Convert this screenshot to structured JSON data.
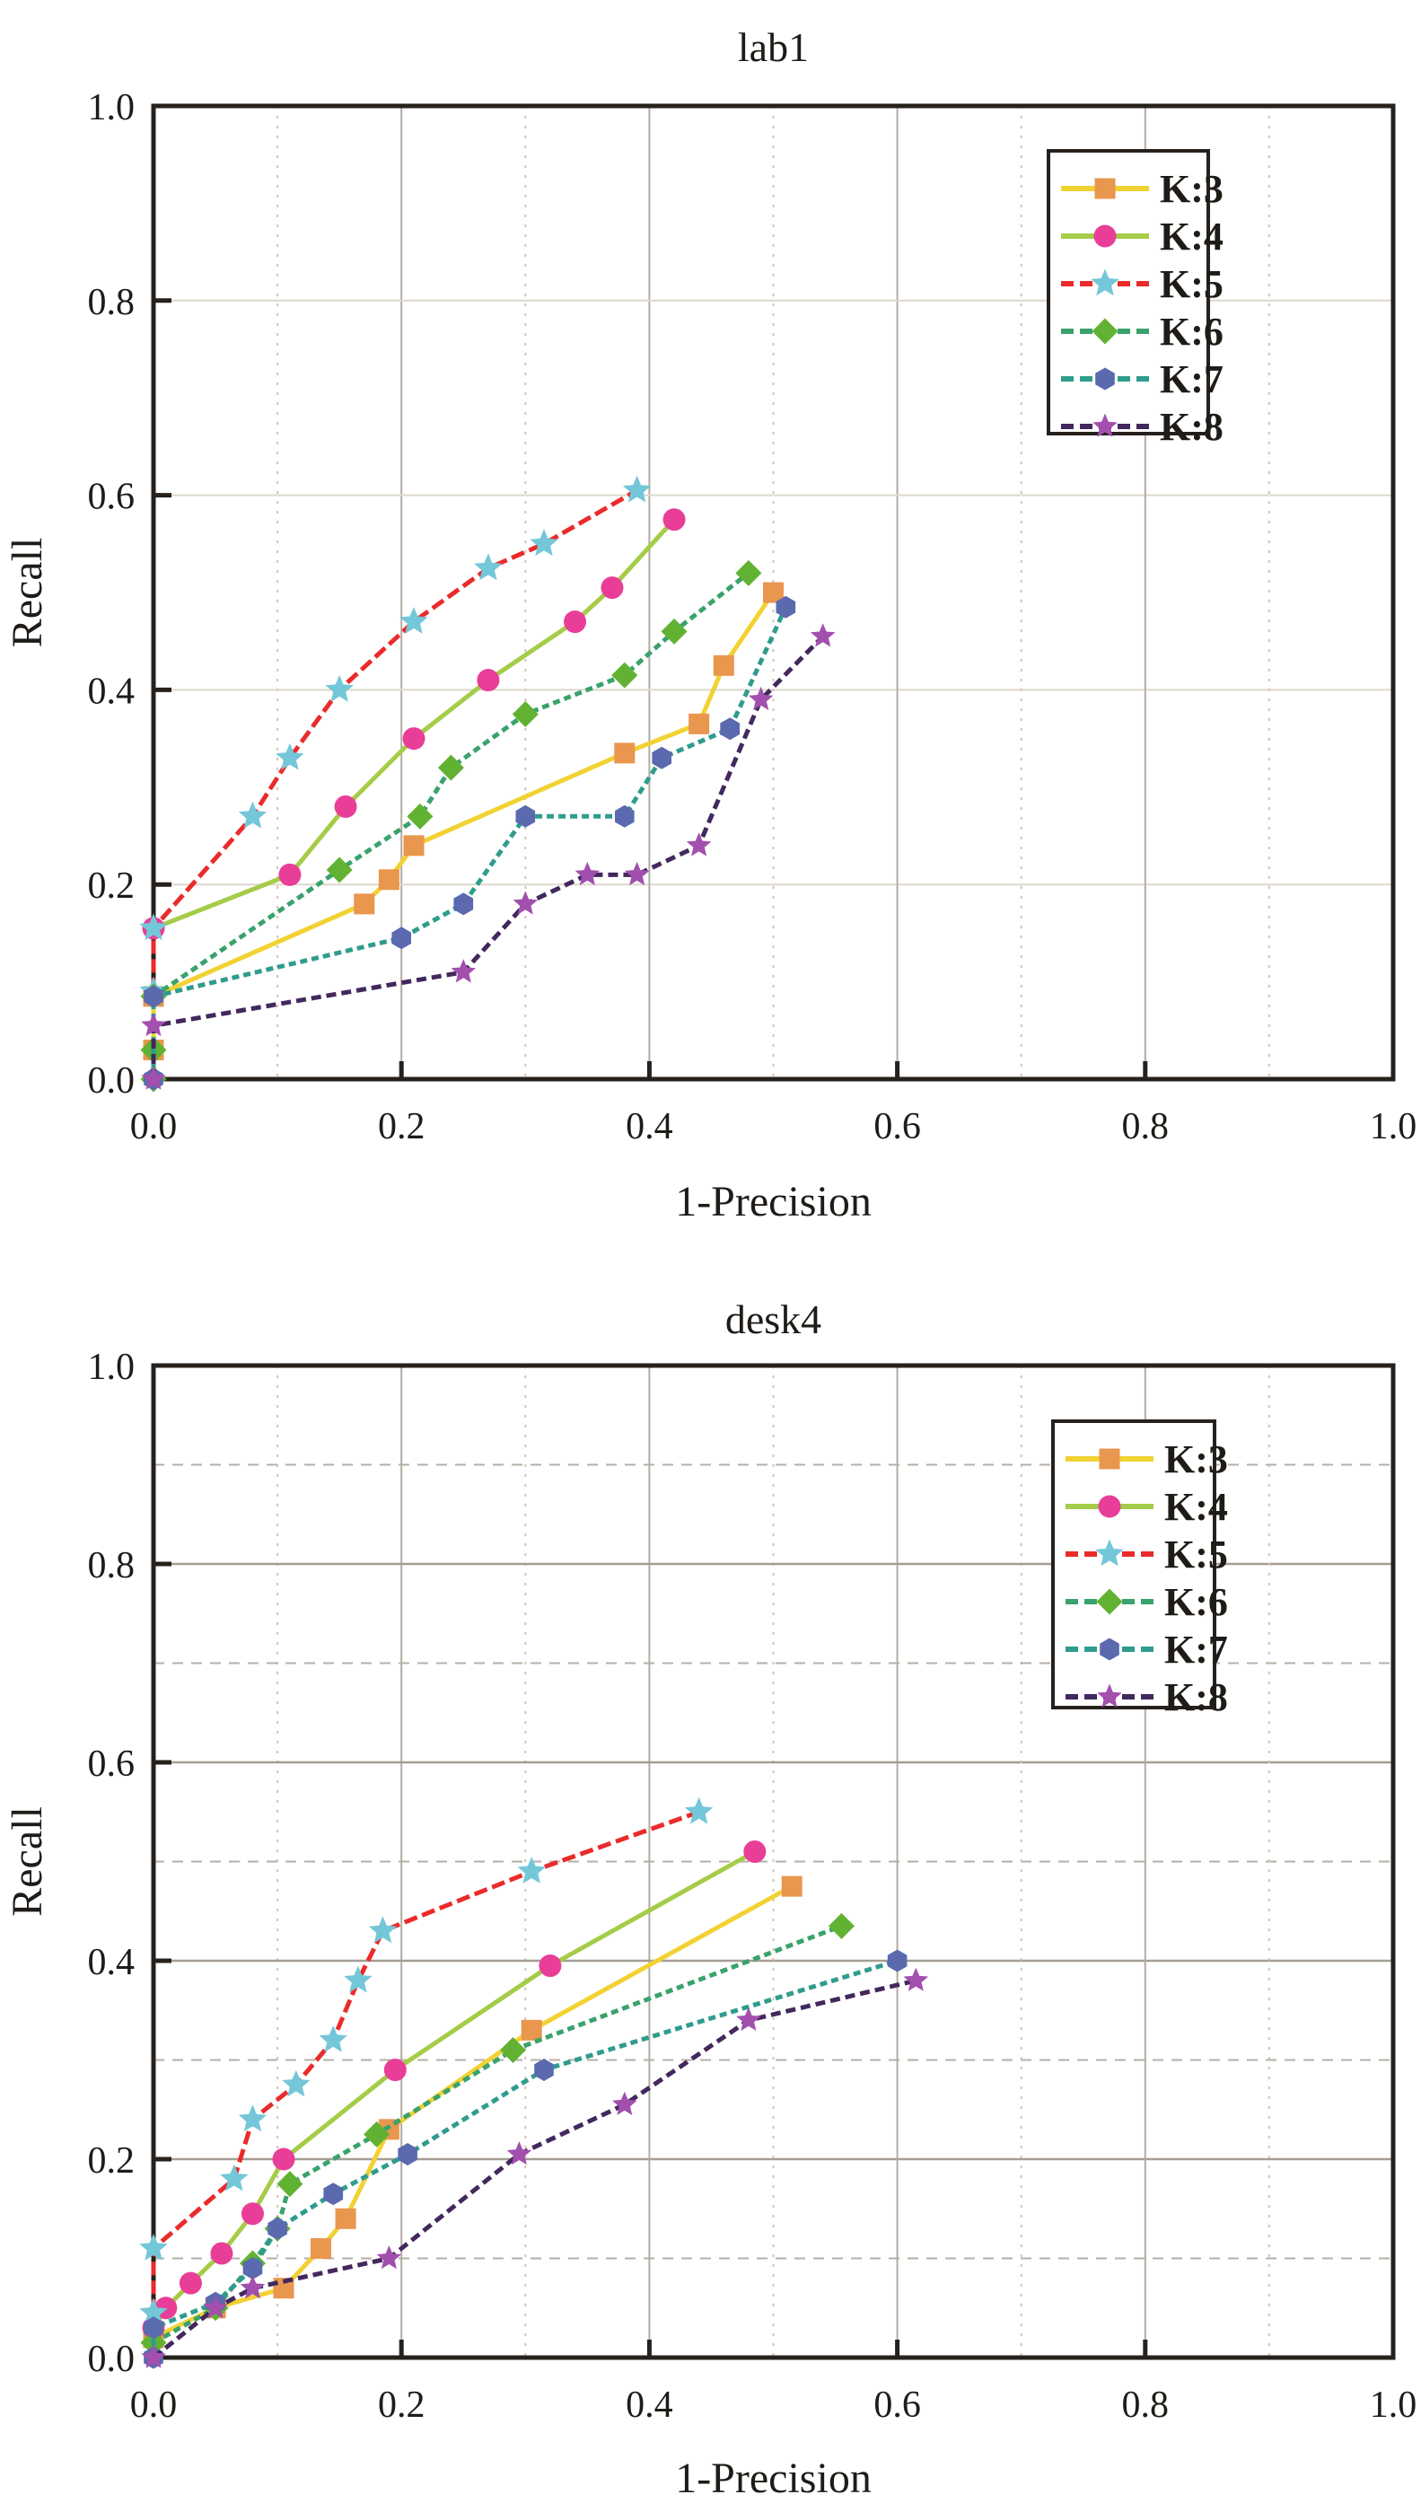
{
  "figure": {
    "background": "#ffffff",
    "text_color": "#1f1b17",
    "axis_color": "#26211c",
    "ylabel": "Recall",
    "xlabel": "1-Precision",
    "tick_labels": [
      "0.0",
      "0.2",
      "0.4",
      "0.6",
      "0.8",
      "1.0"
    ],
    "legend_labels": [
      "K:3",
      "K:4",
      "K:5",
      "K:6",
      "K:7",
      "K:8"
    ]
  },
  "chart_data": [
    {
      "type": "line",
      "title": "lab1",
      "xlabel": "1-Precision",
      "ylabel": "Recall",
      "xlim": [
        0.0,
        1.0
      ],
      "ylim": [
        0.0,
        1.0
      ],
      "xticks": [
        0.0,
        0.2,
        0.4,
        0.6,
        0.8,
        1.0
      ],
      "yticks": [
        0.0,
        0.2,
        0.4,
        0.6,
        0.8,
        1.0
      ],
      "grid": "major light solid at even tenths, dotted minor at odd tenths (vertical)",
      "legend_position": "upper right",
      "series": [
        {
          "name": "K:3",
          "line_color": "#f2d233",
          "line_style": "solid",
          "marker": "square",
          "marker_color": "#e9964e",
          "points": [
            [
              0,
              0.03
            ],
            [
              0,
              0.085
            ],
            [
              0.17,
              0.18
            ],
            [
              0.19,
              0.205
            ],
            [
              0.21,
              0.24
            ],
            [
              0.38,
              0.335
            ],
            [
              0.44,
              0.365
            ],
            [
              0.46,
              0.425
            ],
            [
              0.5,
              0.5
            ]
          ]
        },
        {
          "name": "K:4",
          "line_color": "#a5cc48",
          "line_style": "solid",
          "marker": "circle",
          "marker_color": "#e83e97",
          "points": [
            [
              0,
              0.155
            ],
            [
              0.11,
              0.21
            ],
            [
              0.155,
              0.28
            ],
            [
              0.21,
              0.35
            ],
            [
              0.27,
              0.41
            ],
            [
              0.34,
              0.47
            ],
            [
              0.37,
              0.505
            ],
            [
              0.42,
              0.575
            ]
          ]
        },
        {
          "name": "K:5",
          "line_color": "#ea2b2b",
          "line_style": "dashed",
          "marker": "star",
          "marker_color": "#74c7d8",
          "points": [
            [
              0,
              0.09
            ],
            [
              0,
              0.155
            ],
            [
              0.08,
              0.27
            ],
            [
              0.11,
              0.33
            ],
            [
              0.15,
              0.4
            ],
            [
              0.21,
              0.47
            ],
            [
              0.27,
              0.525
            ],
            [
              0.315,
              0.55
            ],
            [
              0.39,
              0.605
            ]
          ]
        },
        {
          "name": "K:6",
          "line_color": "#3aa26c",
          "line_style": "dashed",
          "marker": "diamond",
          "marker_color": "#61b232",
          "points": [
            [
              0,
              0
            ],
            [
              0,
              0.03
            ],
            [
              0,
              0.085
            ],
            [
              0.15,
              0.215
            ],
            [
              0.215,
              0.27
            ],
            [
              0.24,
              0.32
            ],
            [
              0.3,
              0.375
            ],
            [
              0.38,
              0.415
            ],
            [
              0.42,
              0.46
            ],
            [
              0.48,
              0.52
            ]
          ]
        },
        {
          "name": "K:7",
          "line_color": "#2f9c8d",
          "line_style": "dashed",
          "marker": "hexagon",
          "marker_color": "#5b69af",
          "points": [
            [
              0,
              0
            ],
            [
              0,
              0.085
            ],
            [
              0.2,
              0.145
            ],
            [
              0.25,
              0.18
            ],
            [
              0.3,
              0.27
            ],
            [
              0.38,
              0.27
            ],
            [
              0.41,
              0.33
            ],
            [
              0.465,
              0.36
            ],
            [
              0.51,
              0.485
            ]
          ]
        },
        {
          "name": "K:8",
          "line_color": "#42285d",
          "line_style": "dashed",
          "marker": "star",
          "marker_color": "#a24fae",
          "points": [
            [
              0,
              0
            ],
            [
              0,
              0.055
            ],
            [
              0.25,
              0.11
            ],
            [
              0.3,
              0.18
            ],
            [
              0.35,
              0.21
            ],
            [
              0.39,
              0.21
            ],
            [
              0.44,
              0.24
            ],
            [
              0.49,
              0.39
            ],
            [
              0.54,
              0.455
            ]
          ]
        }
      ]
    },
    {
      "type": "line",
      "title": "desk4",
      "xlabel": "1-Precision",
      "ylabel": "Recall",
      "xlim": [
        0.0,
        1.0
      ],
      "ylim": [
        0.0,
        1.0
      ],
      "xticks": [
        0.0,
        0.2,
        0.4,
        0.6,
        0.8,
        1.0
      ],
      "yticks": [
        0.0,
        0.2,
        0.4,
        0.6,
        0.8,
        1.0
      ],
      "grid": "solid gray at even tenths, dashed/dotted at odd tenths (both directions)",
      "legend_position": "upper right",
      "series": [
        {
          "name": "K:3",
          "line_color": "#f2d233",
          "line_style": "solid",
          "marker": "square",
          "marker_color": "#e9964e",
          "points": [
            [
              0,
              0.02
            ],
            [
              0.05,
              0.05
            ],
            [
              0.105,
              0.07
            ],
            [
              0.135,
              0.11
            ],
            [
              0.155,
              0.14
            ],
            [
              0.19,
              0.23
            ],
            [
              0.305,
              0.33
            ],
            [
              0.515,
              0.475
            ]
          ]
        },
        {
          "name": "K:4",
          "line_color": "#a5cc48",
          "line_style": "solid",
          "marker": "circle",
          "marker_color": "#e83e97",
          "points": [
            [
              0,
              0.03
            ],
            [
              0.01,
              0.05
            ],
            [
              0.03,
              0.075
            ],
            [
              0.055,
              0.105
            ],
            [
              0.08,
              0.145
            ],
            [
              0.105,
              0.2
            ],
            [
              0.195,
              0.29
            ],
            [
              0.32,
              0.395
            ],
            [
              0.485,
              0.51
            ]
          ]
        },
        {
          "name": "K:5",
          "line_color": "#ea2b2b",
          "line_style": "dashed",
          "marker": "star",
          "marker_color": "#74c7d8",
          "points": [
            [
              0,
              0.045
            ],
            [
              0,
              0.11
            ],
            [
              0.065,
              0.18
            ],
            [
              0.08,
              0.24
            ],
            [
              0.115,
              0.275
            ],
            [
              0.145,
              0.32
            ],
            [
              0.165,
              0.38
            ],
            [
              0.185,
              0.43
            ],
            [
              0.305,
              0.49
            ],
            [
              0.44,
              0.55
            ]
          ]
        },
        {
          "name": "K:6",
          "line_color": "#3aa26c",
          "line_style": "dashed",
          "marker": "diamond",
          "marker_color": "#61b232",
          "points": [
            [
              0,
              0.015
            ],
            [
              0.05,
              0.05
            ],
            [
              0.08,
              0.095
            ],
            [
              0.1,
              0.13
            ],
            [
              0.11,
              0.175
            ],
            [
              0.18,
              0.225
            ],
            [
              0.29,
              0.31
            ],
            [
              0.555,
              0.435
            ]
          ]
        },
        {
          "name": "K:7",
          "line_color": "#2f9c8d",
          "line_style": "dashed",
          "marker": "hexagon",
          "marker_color": "#5b69af",
          "points": [
            [
              0,
              0
            ],
            [
              0,
              0.03
            ],
            [
              0.05,
              0.055
            ],
            [
              0.08,
              0.09
            ],
            [
              0.1,
              0.13
            ],
            [
              0.145,
              0.165
            ],
            [
              0.205,
              0.205
            ],
            [
              0.315,
              0.29
            ],
            [
              0.6,
              0.4
            ]
          ]
        },
        {
          "name": "K:8",
          "line_color": "#42285d",
          "line_style": "dashed",
          "marker": "star",
          "marker_color": "#a24fae",
          "points": [
            [
              0,
              0
            ],
            [
              0.05,
              0.05
            ],
            [
              0.08,
              0.07
            ],
            [
              0.19,
              0.1
            ],
            [
              0.295,
              0.205
            ],
            [
              0.38,
              0.255
            ],
            [
              0.48,
              0.34
            ],
            [
              0.615,
              0.38
            ]
          ]
        }
      ]
    }
  ]
}
